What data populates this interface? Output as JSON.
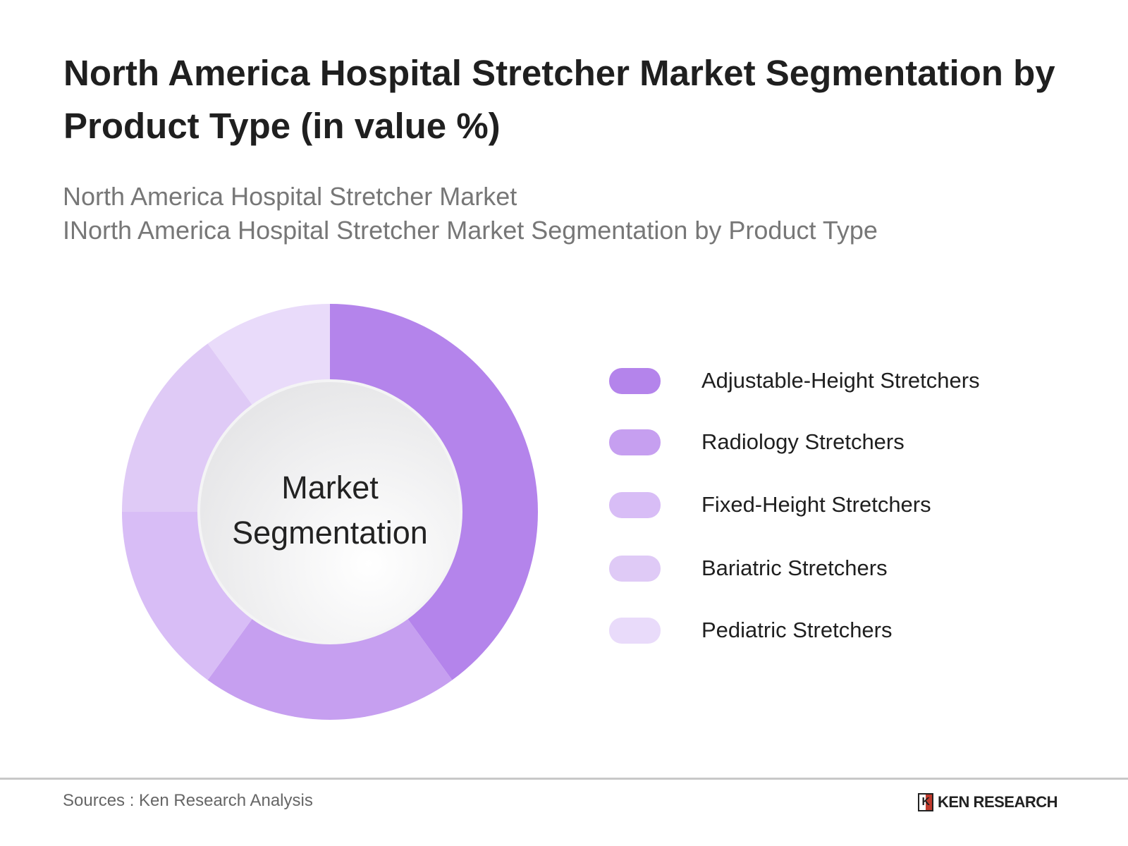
{
  "title": "North America Hospital Stretcher Market Segmentation by Product Type (in value %)",
  "subtitle_1": "North America Hospital Stretcher Market",
  "subtitle_2": "INorth America Hospital Stretcher Market Segmentation by Product Type",
  "chart_data": {
    "type": "pie",
    "variant": "donut",
    "center_label": "Market Segmentation",
    "categories": [
      "Adjustable-Height Stretchers",
      "Radiology Stretchers",
      "Fixed-Height Stretchers",
      "Bariatric Stretchers",
      "Pediatric Stretchers"
    ],
    "values": [
      40,
      20,
      15,
      15,
      10
    ],
    "colors": [
      "#b484eb",
      "#c69ff0",
      "#d8bdf6",
      "#dfcaf6",
      "#e9dbfa"
    ],
    "legend_position": "right"
  },
  "center_line_1": "Market",
  "center_line_2": "Segmentation",
  "source": "Sources : Ken Research Analysis",
  "logo": "KEN RESEARCH"
}
